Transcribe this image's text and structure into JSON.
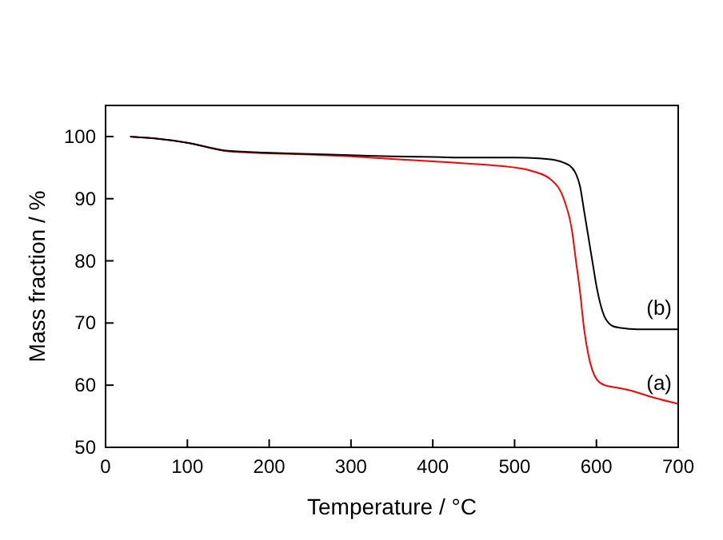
{
  "chart_data": {
    "type": "line",
    "xlabel": "Temperature / °C",
    "ylabel": "Mass fraction / %",
    "xlim": [
      0,
      700
    ],
    "ylim": [
      50,
      105
    ],
    "xticks": [
      0,
      100,
      200,
      300,
      400,
      500,
      600,
      700
    ],
    "yticks": [
      50,
      60,
      70,
      80,
      90,
      100
    ],
    "grid": false,
    "marker": "none",
    "line_style": "solid",
    "series": [
      {
        "name": "(a)",
        "color": "#ff0000",
        "x": [
          30,
          60,
          100,
          150,
          200,
          250,
          300,
          350,
          400,
          450,
          480,
          520,
          545,
          560,
          570,
          575,
          580,
          585,
          590,
          600,
          610,
          625,
          640,
          670,
          700
        ],
        "values": [
          100,
          99.7,
          99,
          97.6,
          97.3,
          97.1,
          96.8,
          96.4,
          96,
          95.6,
          95.3,
          94.5,
          93,
          90,
          85,
          80,
          75,
          69,
          65,
          61,
          60,
          59.6,
          59.2,
          58,
          57
        ]
      },
      {
        "name": "(b)",
        "color": "#000000",
        "x": [
          30,
          60,
          100,
          150,
          200,
          250,
          300,
          350,
          400,
          450,
          500,
          530,
          550,
          560,
          570,
          575,
          580,
          585,
          590,
          595,
          600,
          605,
          610,
          615,
          620,
          630,
          650,
          700
        ],
        "values": [
          100,
          99.7,
          99,
          97.7,
          97.4,
          97.2,
          97,
          96.8,
          96.7,
          96.6,
          96.6,
          96.5,
          96.2,
          95.8,
          95,
          94,
          92,
          88,
          84,
          80,
          76,
          73,
          71,
          70,
          69.5,
          69.2,
          69,
          69
        ]
      }
    ]
  }
}
